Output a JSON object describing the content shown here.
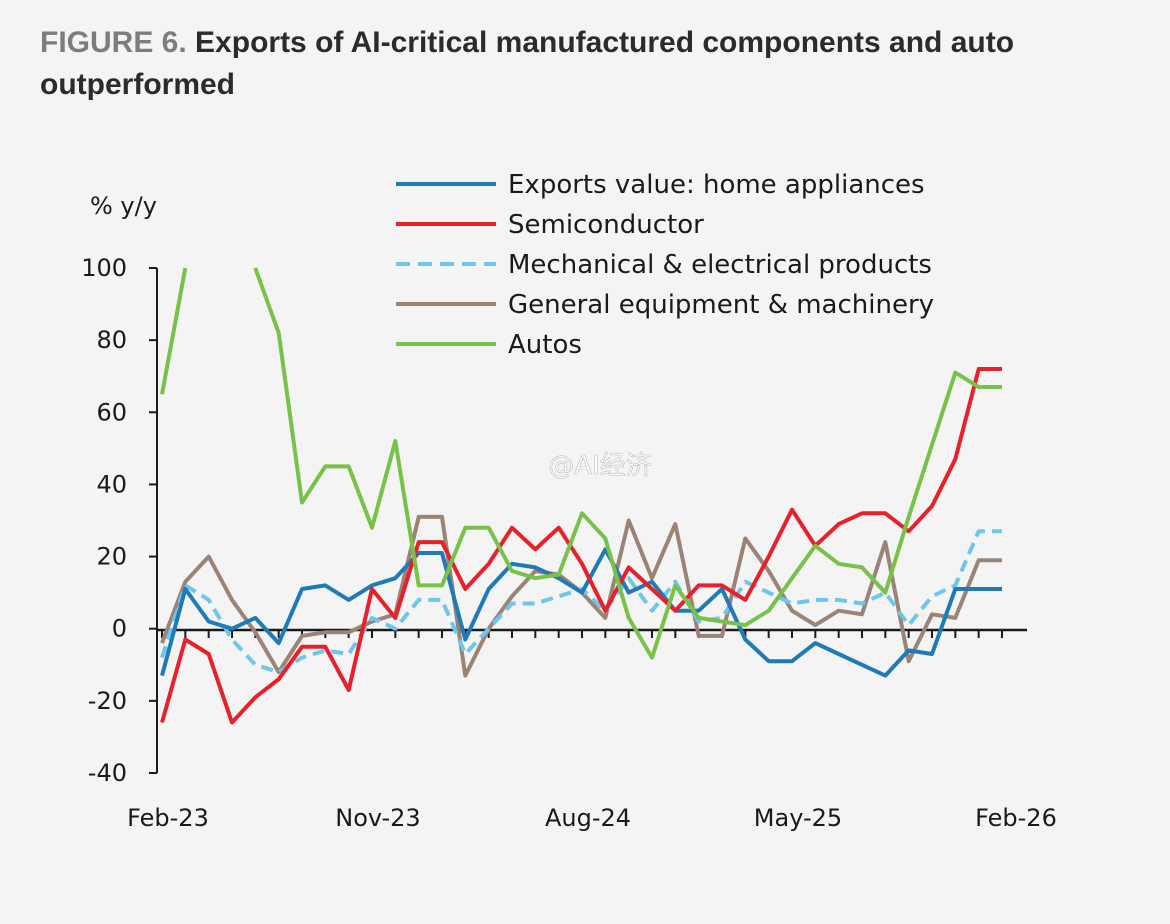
{
  "figure": {
    "label": "FIGURE 6.",
    "title": "Exports of AI-critical manufactured components and auto outperformed"
  },
  "watermark": "@AI经济",
  "colors": {
    "home_appliances": "#1f7ab8",
    "semiconductor": "#e8202a",
    "mechanical_electrical": "#6ec6ec",
    "general_equipment": "#9b8376",
    "autos": "#78c24a",
    "axis": "#1a1a1a"
  },
  "chart_data": {
    "type": "line",
    "title": "Exports of AI-critical manufactured components and auto outperformed",
    "ylabel": "% y/y",
    "xlabel": "",
    "ylim": [
      -40,
      100
    ],
    "yticks": [
      100,
      80,
      60,
      40,
      20,
      0,
      -20,
      -40
    ],
    "x_tick_labels": [
      "Feb-23",
      "Nov-23",
      "Aug-24",
      "May-25",
      "Feb-26"
    ],
    "x_tick_indices": [
      0,
      9,
      18,
      27,
      36
    ],
    "x": [
      "Feb-23",
      "Mar-23",
      "Apr-23",
      "May-23",
      "Jun-23",
      "Jul-23",
      "Aug-23",
      "Sep-23",
      "Oct-23",
      "Nov-23",
      "Dec-23",
      "Jan-24",
      "Feb-24",
      "Mar-24",
      "Apr-24",
      "May-24",
      "Jun-24",
      "Jul-24",
      "Aug-24",
      "Sep-24",
      "Oct-24",
      "Nov-24",
      "Dec-24",
      "Jan-25",
      "Feb-25",
      "Mar-25",
      "Apr-25",
      "May-25",
      "Jun-25",
      "Jul-25",
      "Aug-25",
      "Sep-25",
      "Oct-25",
      "Nov-25",
      "Dec-25",
      "Jan-26",
      "Feb-26"
    ],
    "legend_position": "top",
    "series": [
      {
        "name": "Exports value: home appliances",
        "key": "home_appliances",
        "dashed": false,
        "values": [
          -13,
          11,
          2,
          0,
          3,
          -4,
          11,
          12,
          8,
          12,
          14,
          21,
          21,
          -3,
          11,
          18,
          17,
          14,
          10,
          22,
          10,
          13,
          5,
          5,
          11,
          -3,
          -9,
          -9,
          -4,
          -7,
          -10,
          -13,
          -6,
          -7,
          11,
          11,
          11
        ]
      },
      {
        "name": "Semiconductor",
        "key": "semiconductor",
        "dashed": false,
        "values": [
          -26,
          -3,
          -7,
          -26,
          -19,
          -14,
          -5,
          -5,
          -17,
          11,
          3,
          24,
          24,
          11,
          18,
          28,
          22,
          28,
          18,
          5,
          17,
          11,
          5,
          12,
          12,
          8,
          20,
          33,
          23,
          29,
          32,
          32,
          27,
          34,
          47,
          72,
          72
        ]
      },
      {
        "name": "Mechanical & electrical products",
        "key": "mechanical_electrical",
        "dashed": true,
        "values": [
          -8,
          12,
          8,
          -3,
          -10,
          -12,
          -8,
          -6,
          -7,
          3,
          0,
          8,
          8,
          -7,
          0,
          7,
          7,
          9,
          11,
          5,
          14,
          5,
          13,
          2,
          3,
          13,
          10,
          7,
          8,
          8,
          7,
          10,
          1,
          9,
          12,
          27,
          27
        ]
      },
      {
        "name": "General equipment & machinery",
        "key": "general_equipment",
        "dashed": false,
        "values": [
          -4,
          13,
          20,
          8,
          -1,
          -12,
          -2,
          -1,
          -1,
          2,
          4,
          31,
          31,
          -13,
          0,
          9,
          16,
          15,
          10,
          3,
          30,
          14,
          29,
          -2,
          -2,
          25,
          16,
          5,
          1,
          5,
          4,
          24,
          -9,
          4,
          3,
          19,
          19
        ]
      },
      {
        "name": "Autos",
        "key": "autos",
        "dashed": false,
        "values": [
          65,
          100,
          null,
          null,
          100,
          82,
          35,
          45,
          45,
          28,
          52,
          12,
          12,
          28,
          28,
          16,
          14,
          15,
          32,
          25,
          3,
          -8,
          12,
          3,
          2,
          1,
          5,
          14,
          23,
          18,
          17,
          10,
          31,
          51,
          71,
          67,
          67
        ]
      }
    ]
  }
}
